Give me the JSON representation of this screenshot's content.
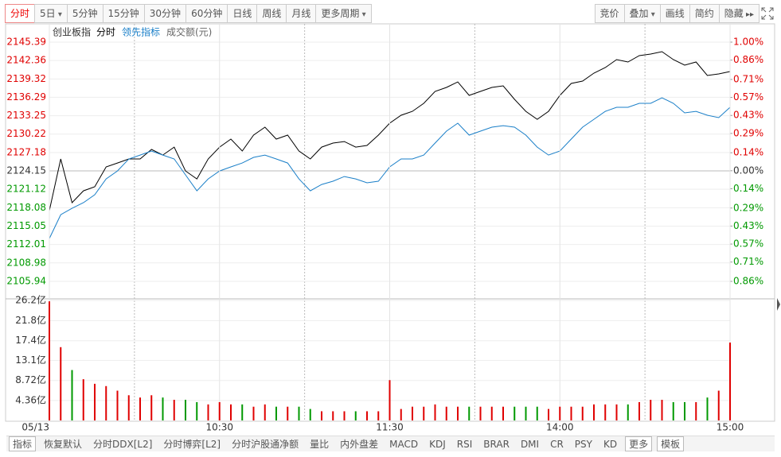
{
  "toolbar": {
    "left": [
      "分时",
      "5日",
      "5分钟",
      "15分钟",
      "30分钟",
      "60分钟",
      "日线",
      "周线",
      "月线",
      "更多周期"
    ],
    "right": [
      "竞价",
      "叠加",
      "画线",
      "简约",
      "隐藏"
    ]
  },
  "chart_data": [
    {
      "type": "line",
      "title": "创业板指",
      "up_color": "#e00000",
      "down_color": "#009900",
      "flat_color": "#333333",
      "x": [
        0,
        4,
        8,
        12,
        16,
        20,
        24,
        28,
        32,
        36,
        40,
        44,
        48,
        52,
        56,
        60,
        64,
        68,
        72,
        76,
        80,
        84,
        88,
        92,
        96,
        100,
        104,
        108,
        112,
        116,
        120,
        124,
        128,
        132,
        136,
        140,
        144,
        148,
        152,
        156,
        160,
        164,
        168,
        172,
        176,
        180,
        184,
        188,
        192,
        196,
        200,
        204,
        208,
        212,
        216,
        220,
        224,
        228,
        232,
        236,
        240
      ],
      "xlim": [
        0,
        240
      ],
      "xgrid": [
        30,
        90,
        150,
        210
      ],
      "series": [
        {
          "name": "分时",
          "color": "#000000",
          "values": [
            2117.6,
            2126.12,
            2118.91,
            2120.87,
            2121.53,
            2124.81,
            2125.46,
            2126.12,
            2126.12,
            2127.69,
            2126.77,
            2128.08,
            2124.15,
            2122.84,
            2126.12,
            2128.08,
            2129.4,
            2127.43,
            2130.05,
            2131.36,
            2129.4,
            2130.05,
            2127.43,
            2126.12,
            2128.08,
            2128.74,
            2129.0,
            2128.08,
            2128.35,
            2130.05,
            2132.02,
            2133.33,
            2133.98,
            2135.3,
            2137.26,
            2137.92,
            2138.83,
            2136.61,
            2137.26,
            2137.92,
            2138.18,
            2135.95,
            2133.98,
            2132.67,
            2133.98,
            2136.61,
            2138.57,
            2138.97,
            2140.28,
            2141.19,
            2142.51,
            2142.11,
            2143.16,
            2143.42,
            2143.82,
            2142.51,
            2141.59,
            2142.11,
            2139.88,
            2140.15,
            2140.54
          ]
        },
        {
          "name": "领先指标",
          "color": "#1a7fc8",
          "values": [
            2113.01,
            2116.94,
            2117.99,
            2118.91,
            2120.22,
            2122.84,
            2124.15,
            2126.12,
            2126.77,
            2127.43,
            2126.77,
            2126.12,
            2123.5,
            2120.87,
            2122.84,
            2124.15,
            2124.81,
            2125.46,
            2126.38,
            2126.77,
            2126.12,
            2125.46,
            2122.84,
            2120.87,
            2121.92,
            2122.45,
            2123.23,
            2122.84,
            2122.19,
            2122.45,
            2124.81,
            2126.12,
            2126.12,
            2126.77,
            2128.74,
            2130.71,
            2132.02,
            2130.05,
            2130.71,
            2131.36,
            2131.62,
            2131.36,
            2130.05,
            2128.08,
            2126.77,
            2127.43,
            2129.4,
            2131.36,
            2132.67,
            2133.98,
            2134.64,
            2134.64,
            2135.3,
            2135.3,
            2136.21,
            2135.3,
            2133.72,
            2133.98,
            2133.33,
            2132.94,
            2134.64
          ]
        }
      ],
      "ylim": [
        2105.94,
        2145.39
      ],
      "yticks": [
        2145.39,
        2142.36,
        2139.32,
        2136.29,
        2133.25,
        2130.22,
        2127.18,
        2124.15,
        2121.12,
        2118.08,
        2115.05,
        2112.01,
        2108.98,
        2105.94
      ],
      "y2lim": [
        -0.86,
        1.0
      ],
      "y2ticks": [
        {
          "value": 1.0,
          "label": "1.00%"
        },
        {
          "value": 0.86,
          "label": "0.86%"
        },
        {
          "value": 0.71,
          "label": "0.71%"
        },
        {
          "value": 0.57,
          "label": "0.57%"
        },
        {
          "value": 0.43,
          "label": "0.43%"
        },
        {
          "value": 0.29,
          "label": "0.29%"
        },
        {
          "value": 0.14,
          "label": "0.14%"
        },
        {
          "value": 0,
          "label": "0.00%"
        },
        {
          "value": -0.14,
          "label": "0.14%"
        },
        {
          "value": -0.29,
          "label": "0.29%"
        },
        {
          "value": -0.43,
          "label": "0.43%"
        },
        {
          "value": -0.57,
          "label": "0.57%"
        },
        {
          "value": -0.71,
          "label": "0.71%"
        },
        {
          "value": -0.86,
          "label": "0.86%"
        }
      ]
    },
    {
      "type": "bar",
      "title": "成交额(元)",
      "up_color": "#e00000",
      "down_color": "#009900",
      "x": [
        0,
        4,
        8,
        12,
        16,
        20,
        24,
        28,
        32,
        36,
        40,
        44,
        48,
        52,
        56,
        60,
        64,
        68,
        72,
        76,
        80,
        84,
        88,
        92,
        96,
        100,
        104,
        108,
        112,
        116,
        120,
        124,
        128,
        132,
        136,
        140,
        144,
        148,
        152,
        156,
        160,
        164,
        168,
        172,
        176,
        180,
        184,
        188,
        192,
        196,
        200,
        204,
        208,
        212,
        216,
        220,
        224,
        228,
        232,
        236,
        240
      ],
      "values": [
        26,
        16,
        11,
        9,
        8,
        7.5,
        6.5,
        5.5,
        5,
        5.5,
        5,
        4.5,
        4.5,
        4,
        3.5,
        4,
        3.5,
        3.5,
        3,
        3.5,
        3,
        3,
        3,
        2.5,
        2,
        2,
        2,
        2,
        2,
        2,
        8.8,
        2.5,
        3,
        3,
        3.5,
        3,
        3,
        3,
        3,
        3,
        3,
        3,
        3,
        3,
        2.5,
        3,
        3,
        3,
        3.5,
        3.5,
        3.5,
        3.5,
        4,
        4.5,
        4.5,
        4,
        4,
        4,
        5,
        6.5,
        17
      ],
      "xlim": [
        0,
        240
      ],
      "xticks": [
        {
          "value": 0,
          "label": "05/13"
        },
        {
          "value": 60,
          "label": "10:30"
        },
        {
          "value": 120,
          "label": "11:30"
        },
        {
          "value": 180,
          "label": "14:00"
        },
        {
          "value": 240,
          "label": "15:00"
        }
      ],
      "ylim": [
        0,
        26.2
      ],
      "yticks": [
        {
          "value": 26.2,
          "label": "26.2亿"
        },
        {
          "value": 21.8,
          "label": "21.8亿"
        },
        {
          "value": 17.4,
          "label": "17.4亿"
        },
        {
          "value": 13.1,
          "label": "13.1亿"
        },
        {
          "value": 8.72,
          "label": "8.72亿"
        },
        {
          "value": 4.36,
          "label": "4.36亿"
        }
      ]
    }
  ],
  "bottom_tabs": [
    "指标",
    "恢复默认",
    "分时DDX[L2]",
    "分时博弈[L2]",
    "分时沪股通净额",
    "量比",
    "内外盘差",
    "MACD",
    "KDJ",
    "RSI",
    "BRAR",
    "DMI",
    "CR",
    "PSY",
    "KD",
    "更多",
    "模板"
  ]
}
